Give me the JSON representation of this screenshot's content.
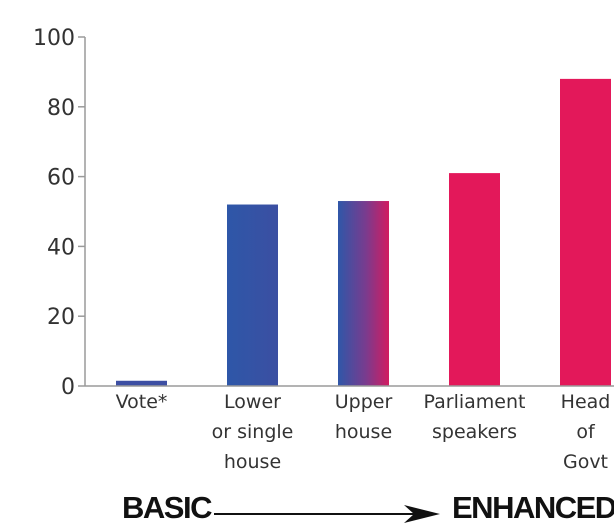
{
  "chart_data": {
    "type": "bar",
    "categories": [
      [
        "Vote*"
      ],
      [
        "Lower",
        "or single",
        "house"
      ],
      [
        "Upper",
        "house"
      ],
      [
        "Parliament",
        "speakers"
      ],
      [
        "Head",
        "of",
        "Govt"
      ]
    ],
    "values": [
      1.5,
      52,
      53,
      61,
      88
    ],
    "ylim": [
      0,
      100
    ],
    "yticks": [
      0,
      20,
      40,
      60,
      80,
      100
    ],
    "colors": [
      "#3d4fa3",
      "#3456a8",
      "#7a3b8e",
      "#e3185a",
      "#e3185a"
    ],
    "scale_arrow": {
      "start_label": "BASIC",
      "end_label": "ENHANCED"
    }
  }
}
